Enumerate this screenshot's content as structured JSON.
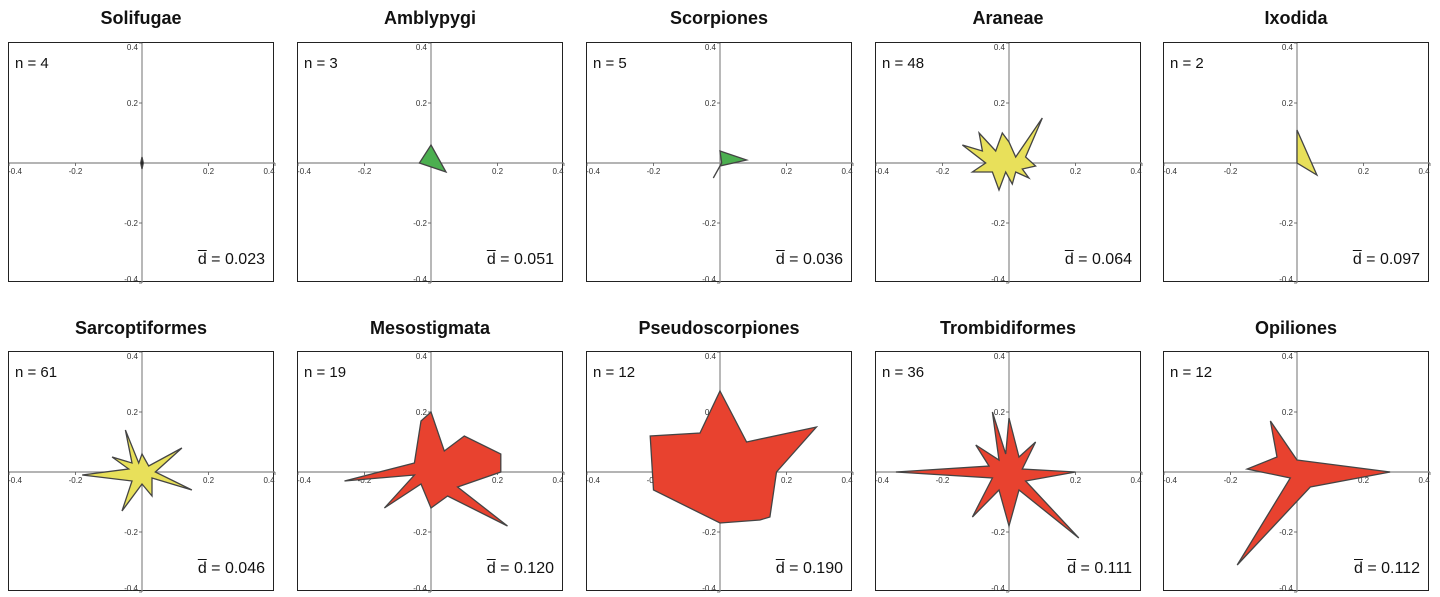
{
  "chart_data": [
    {
      "type": "radar",
      "title": "Solifugae",
      "n_label": "n = 4",
      "d_symbol": "d",
      "d_value": "= 0.023",
      "axis_ticks": [
        "-0.4",
        "-0.2",
        "0.2",
        "0.4"
      ],
      "xlim": [
        -0.4,
        0.4
      ],
      "ylim": [
        -0.4,
        0.4
      ],
      "fill_color": "#111111",
      "vertices": [
        [
          0,
          0.02
        ],
        [
          0.004,
          0.0
        ],
        [
          0,
          -0.02
        ],
        [
          -0.004,
          0.0
        ]
      ]
    },
    {
      "type": "radar",
      "title": "Amblypygi",
      "n_label": "n = 3",
      "d_symbol": "d",
      "d_value": "= 0.051",
      "axis_ticks": [
        "-0.4",
        "-0.2",
        "0.2",
        "0.4"
      ],
      "xlim": [
        -0.4,
        0.4
      ],
      "ylim": [
        -0.4,
        0.4
      ],
      "fill_color": "#4caf50",
      "vertices": [
        [
          0.0,
          0.06
        ],
        [
          0.045,
          -0.03
        ],
        [
          -0.035,
          0.0
        ]
      ]
    },
    {
      "type": "radar",
      "title": "Scorpiones",
      "n_label": "n = 5",
      "d_symbol": "d",
      "d_value": "= 0.036",
      "axis_ticks": [
        "-0.4",
        "-0.2",
        "0.2",
        "0.4"
      ],
      "xlim": [
        -0.4,
        0.4
      ],
      "ylim": [
        -0.4,
        0.4
      ],
      "fill_color": "#4caf50",
      "vertices": [
        [
          0.0,
          0.04
        ],
        [
          0.08,
          0.01
        ],
        [
          0.0,
          -0.01
        ],
        [
          -0.02,
          -0.05
        ],
        [
          0.005,
          0.0
        ]
      ]
    },
    {
      "type": "radar",
      "title": "Araneae",
      "n_label": "n = 48",
      "d_symbol": "d",
      "d_value": "= 0.064",
      "axis_ticks": [
        "-0.4",
        "-0.2",
        "0.2",
        "0.4"
      ],
      "xlim": [
        -0.4,
        0.4
      ],
      "ylim": [
        -0.4,
        0.4
      ],
      "fill_color": "#e8e05a",
      "vertices": [
        [
          0,
          0.07
        ],
        [
          0.02,
          0.02
        ],
        [
          0.1,
          0.15
        ],
        [
          0.05,
          0.02
        ],
        [
          0.08,
          -0.01
        ],
        [
          0.04,
          -0.02
        ],
        [
          0.06,
          -0.05
        ],
        [
          0.02,
          -0.03
        ],
        [
          0.01,
          -0.07
        ],
        [
          -0.01,
          -0.03
        ],
        [
          -0.03,
          -0.09
        ],
        [
          -0.05,
          -0.03
        ],
        [
          -0.11,
          -0.03
        ],
        [
          -0.07,
          0.0
        ],
        [
          -0.14,
          0.06
        ],
        [
          -0.08,
          0.04
        ],
        [
          -0.09,
          0.1
        ],
        [
          -0.04,
          0.04
        ],
        [
          -0.02,
          0.1
        ]
      ]
    },
    {
      "type": "radar",
      "title": "Ixodida",
      "n_label": "n = 2",
      "d_symbol": "d",
      "d_value": "= 0.097",
      "axis_ticks": [
        "-0.4",
        "-0.2",
        "0.2",
        "0.4"
      ],
      "xlim": [
        -0.4,
        0.4
      ],
      "ylim": [
        -0.4,
        0.4
      ],
      "fill_color": "#e8e05a",
      "vertices": [
        [
          0.0,
          0.11
        ],
        [
          0.06,
          -0.04
        ],
        [
          0.0,
          0.0
        ]
      ]
    },
    {
      "type": "radar",
      "title": "Sarcoptiformes",
      "n_label": "n = 61",
      "d_symbol": "d",
      "d_value": "= 0.046",
      "axis_ticks": [
        "-0.4",
        "-0.2",
        "0.2",
        "0.4"
      ],
      "xlim": [
        -0.4,
        0.4
      ],
      "ylim": [
        -0.4,
        0.4
      ],
      "fill_color": "#e8e05a",
      "vertices": [
        [
          0.0,
          0.06
        ],
        [
          0.02,
          0.02
        ],
        [
          0.12,
          0.08
        ],
        [
          0.04,
          0.0
        ],
        [
          0.15,
          -0.06
        ],
        [
          0.03,
          -0.02
        ],
        [
          0.03,
          -0.08
        ],
        [
          0.0,
          -0.04
        ],
        [
          -0.06,
          -0.13
        ],
        [
          -0.03,
          -0.03
        ],
        [
          -0.18,
          -0.01
        ],
        [
          -0.04,
          0.01
        ],
        [
          -0.09,
          0.05
        ],
        [
          -0.03,
          0.03
        ],
        [
          -0.05,
          0.14
        ],
        [
          -0.01,
          0.03
        ]
      ]
    },
    {
      "type": "radar",
      "title": "Mesostigmata",
      "n_label": "n = 19",
      "d_symbol": "d",
      "d_value": "= 0.120",
      "axis_ticks": [
        "-0.4",
        "-0.2",
        "0.2",
        "0.4"
      ],
      "xlim": [
        -0.4,
        0.4
      ],
      "ylim": [
        -0.4,
        0.4
      ],
      "fill_color": "#e8422f",
      "vertices": [
        [
          0.0,
          0.2
        ],
        [
          0.04,
          0.07
        ],
        [
          0.1,
          0.12
        ],
        [
          0.21,
          0.06
        ],
        [
          0.21,
          0.0
        ],
        [
          0.08,
          -0.05
        ],
        [
          0.23,
          -0.18
        ],
        [
          0.05,
          -0.08
        ],
        [
          0.0,
          -0.12
        ],
        [
          -0.03,
          -0.04
        ],
        [
          -0.14,
          -0.12
        ],
        [
          -0.05,
          -0.01
        ],
        [
          -0.26,
          -0.03
        ],
        [
          -0.05,
          0.03
        ],
        [
          -0.03,
          0.17
        ]
      ]
    },
    {
      "type": "radar",
      "title": "Pseudoscorpiones",
      "n_label": "n = 12",
      "d_symbol": "d",
      "d_value": "= 0.190",
      "axis_ticks": [
        "-0.4",
        "-0.2",
        "0.2",
        "0.4"
      ],
      "xlim": [
        -0.4,
        0.4
      ],
      "ylim": [
        -0.4,
        0.4
      ],
      "fill_color": "#e8422f",
      "vertices": [
        [
          0.0,
          0.27
        ],
        [
          0.08,
          0.1
        ],
        [
          0.29,
          0.15
        ],
        [
          0.17,
          0.0
        ],
        [
          0.15,
          -0.15
        ],
        [
          0.12,
          -0.16
        ],
        [
          0.0,
          -0.17
        ],
        [
          -0.2,
          -0.06
        ],
        [
          -0.21,
          0.12
        ],
        [
          -0.06,
          0.13
        ]
      ]
    },
    {
      "type": "radar",
      "title": "Trombidiformes",
      "n_label": "n = 36",
      "d_symbol": "d",
      "d_value": "= 0.111",
      "axis_ticks": [
        "-0.4",
        "-0.2",
        "0.2",
        "0.4"
      ],
      "xlim": [
        -0.4,
        0.4
      ],
      "ylim": [
        -0.4,
        0.4
      ],
      "fill_color": "#e8422f",
      "vertices": [
        [
          0.0,
          0.18
        ],
        [
          0.03,
          0.05
        ],
        [
          0.08,
          0.1
        ],
        [
          0.04,
          0.01
        ],
        [
          0.2,
          0.0
        ],
        [
          0.05,
          -0.03
        ],
        [
          0.21,
          -0.22
        ],
        [
          0.03,
          -0.06
        ],
        [
          0.0,
          -0.18
        ],
        [
          -0.03,
          -0.06
        ],
        [
          -0.11,
          -0.15
        ],
        [
          -0.05,
          -0.02
        ],
        [
          -0.34,
          0.0
        ],
        [
          -0.06,
          0.02
        ],
        [
          -0.1,
          0.09
        ],
        [
          -0.03,
          0.04
        ],
        [
          -0.05,
          0.2
        ],
        [
          -0.01,
          0.06
        ]
      ]
    },
    {
      "type": "radar",
      "title": "Opiliones",
      "n_label": "n = 12",
      "d_symbol": "d",
      "d_value": "= 0.112",
      "axis_ticks": [
        "-0.4",
        "-0.2",
        "0.2",
        "0.4"
      ],
      "xlim": [
        -0.4,
        0.4
      ],
      "ylim": [
        -0.4,
        0.4
      ],
      "fill_color": "#e8422f",
      "vertices": [
        [
          0.0,
          0.04
        ],
        [
          0.28,
          0.0
        ],
        [
          0.04,
          -0.05
        ],
        [
          -0.18,
          -0.31
        ],
        [
          -0.02,
          -0.02
        ],
        [
          -0.15,
          0.01
        ],
        [
          -0.06,
          0.05
        ],
        [
          -0.08,
          0.17
        ]
      ]
    }
  ]
}
